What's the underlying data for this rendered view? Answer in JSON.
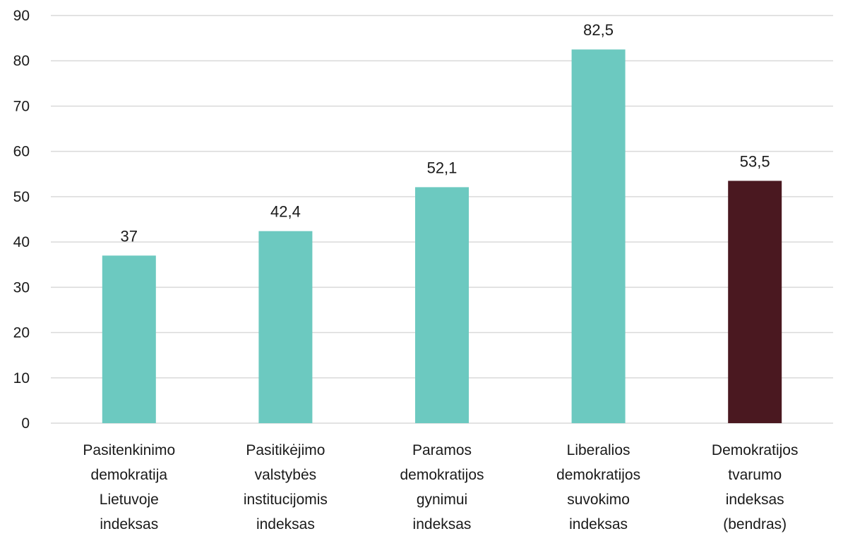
{
  "chart_data": {
    "type": "bar",
    "title": "",
    "xlabel": "",
    "ylabel": "",
    "ylim": [
      0,
      90
    ],
    "yticks": [
      0,
      10,
      20,
      30,
      40,
      50,
      60,
      70,
      80,
      90
    ],
    "grid": true,
    "categories": [
      [
        "Pasitenkinimo",
        "demokratija",
        "Lietuvoje",
        "indeksas"
      ],
      [
        "Pasitikėjimo",
        "valstybės",
        "institucijomis",
        "indeksas"
      ],
      [
        "Paramos",
        "demokratijos",
        "gynimui",
        "indeksas"
      ],
      [
        "Liberalios",
        "demokratijos",
        "suvokimo",
        "indeksas"
      ],
      [
        "Demokratijos",
        "tvarumo",
        "indeksas",
        "(bendras)"
      ]
    ],
    "values": [
      37,
      42.4,
      52.1,
      82.5,
      53.5
    ],
    "value_labels": [
      "37",
      "42,4",
      "52,1",
      "82,5",
      "53,5"
    ],
    "colors": [
      "#6cc9c0",
      "#6cc9c0",
      "#6cc9c0",
      "#6cc9c0",
      "#4a1820"
    ]
  }
}
